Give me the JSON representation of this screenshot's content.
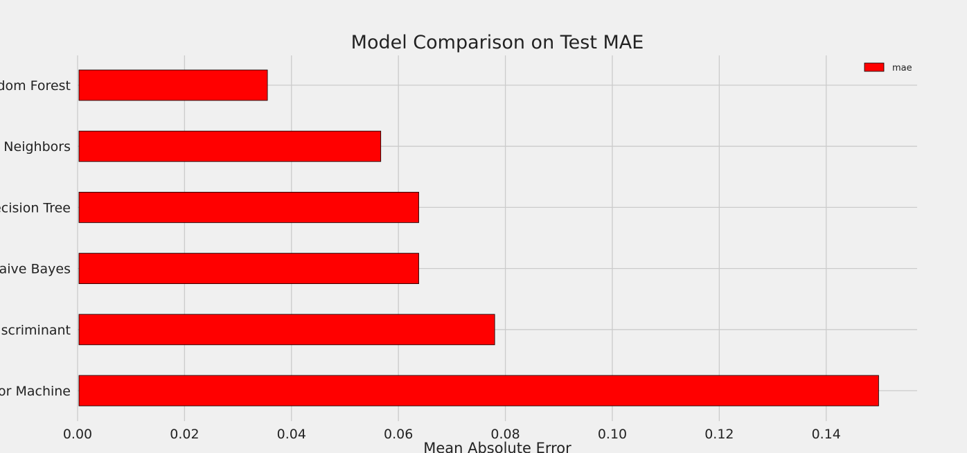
{
  "chart_data": {
    "type": "bar",
    "orientation": "horizontal",
    "title": "Model Comparison on Test MAE",
    "xlabel": "Mean Absolute Error",
    "ylabel": "",
    "categories": [
      "Random Forest",
      "K-Nearest Neighbors",
      "Decision Tree",
      "Naive Bayes",
      "Linear Discriminant",
      "Support Vector Machine"
    ],
    "category_labels_visible": [
      "ndom Forest",
      "st Neighbors",
      "ecision Tree",
      "Naive Bayes",
      "Discriminant",
      "tor Machine"
    ],
    "series": [
      {
        "name": "mae",
        "values": [
          0.0355,
          0.0567,
          0.0638,
          0.0638,
          0.078,
          0.1498
        ],
        "color": "#ff0000"
      }
    ],
    "xlim": [
      0,
      0.157
    ],
    "xticks": [
      0.0,
      0.02,
      0.04,
      0.06,
      0.08,
      0.1,
      0.12,
      0.14
    ],
    "xtick_labels": [
      "0.00",
      "0.02",
      "0.04",
      "0.06",
      "0.08",
      "0.10",
      "0.12",
      "0.14"
    ],
    "grid": true,
    "legend_position": "top-right",
    "colors": {
      "background": "#f0f0f0",
      "grid": "#cbcbcb",
      "bar": "#ff0000",
      "bar_edge": "#000000",
      "text": "#222222"
    }
  }
}
